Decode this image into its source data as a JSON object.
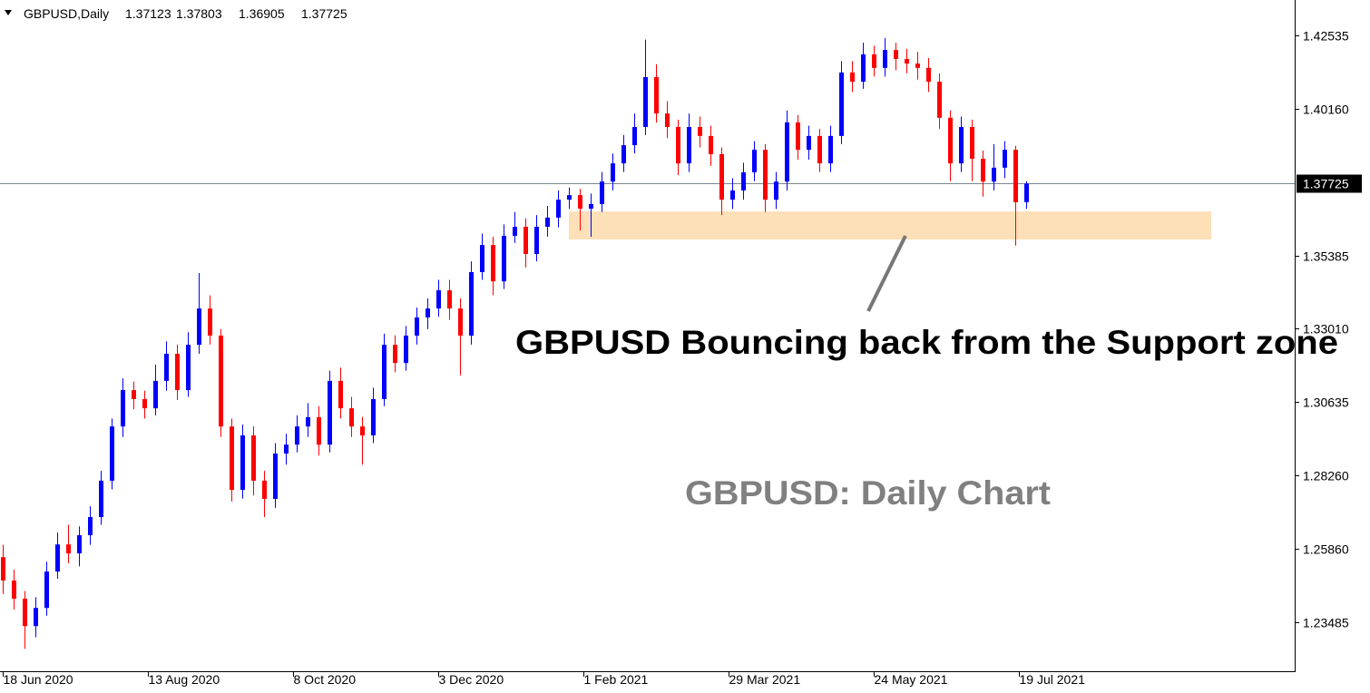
{
  "chart_data": {
    "type": "candlestick",
    "symbol": "GBPUSD,Daily",
    "title": "GBPUSD: Daily Chart",
    "annotation": "GBPUSD Bouncing back from the Support zone",
    "up_color": "#0000ff",
    "down_color": "#ff0000",
    "price_line_color": "#7a8796",
    "zone_color": "#fde0b8",
    "x": [
      0,
      3,
      6,
      9,
      12,
      15,
      18,
      21,
      24,
      27,
      30,
      33,
      36,
      39,
      42,
      45,
      48,
      51,
      54,
      57,
      60,
      63,
      66,
      69,
      72,
      75,
      78,
      81,
      84,
      87,
      90,
      93,
      96,
      99,
      102,
      105,
      108,
      111,
      114,
      117,
      120,
      123,
      126,
      129,
      132,
      135,
      138,
      141,
      144,
      147,
      150,
      153,
      156,
      159,
      162,
      165,
      168,
      171,
      174,
      177,
      180,
      183,
      186,
      189,
      192,
      195,
      198,
      201,
      204,
      207,
      210,
      213,
      216,
      219,
      222,
      225,
      228,
      231,
      234,
      237,
      240,
      243,
      246,
      249,
      252,
      255,
      258,
      261,
      264,
      267,
      270,
      273,
      276,
      279,
      282
    ],
    "open": [
      1.256,
      1.2484,
      1.2425,
      1.2336,
      1.2395,
      1.2513,
      1.2601,
      1.2572,
      1.2631,
      1.269,
      1.2808,
      1.2984,
      1.3102,
      1.3073,
      1.3043,
      1.3132,
      1.322,
      1.3102,
      1.3249,
      1.3367,
      1.3279,
      1.2984,
      1.2778,
      1.2955,
      1.2808,
      1.2749,
      1.2896,
      1.2925,
      1.2984,
      1.3014,
      1.2925,
      1.3132,
      1.3043,
      1.2984,
      1.2955,
      1.3073,
      1.3249,
      1.319,
      1.3279,
      1.3338,
      1.3367,
      1.3426,
      1.3367,
      1.3279,
      1.3485,
      1.3573,
      1.3455,
      1.3603,
      1.3632,
      1.3544,
      1.3632,
      1.3662,
      1.372,
      1.3735,
      1.3691,
      1.3706,
      1.3779,
      1.3838,
      1.3897,
      1.3956,
      1.4118,
      1.4,
      1.3956,
      1.3838,
      1.3956,
      1.3927,
      1.3868,
      1.372,
      1.375,
      1.3809,
      1.3882,
      1.372,
      1.3779,
      1.3971,
      1.3882,
      1.3927,
      1.3838,
      1.3927,
      1.4133,
      1.4103,
      1.4192,
      1.4148,
      1.4206,
      1.4177,
      1.4162,
      1.4148,
      1.4103,
      1.3986,
      1.3838,
      1.3956,
      1.3853,
      1.3779,
      1.3824,
      1.3882,
      1.37123
    ],
    "high": [
      1.26,
      1.252,
      1.245,
      1.243,
      1.2545,
      1.264,
      1.2665,
      1.266,
      1.2725,
      1.284,
      1.301,
      1.314,
      1.313,
      1.31,
      1.3185,
      1.326,
      1.325,
      1.329,
      1.3482,
      1.341,
      1.33,
      1.301,
      1.299,
      1.2985,
      1.284,
      1.293,
      1.296,
      1.302,
      1.306,
      1.305,
      1.3165,
      1.3175,
      1.308,
      1.3015,
      1.311,
      1.3285,
      1.328,
      1.331,
      1.337,
      1.34,
      1.346,
      1.346,
      1.34,
      1.352,
      1.361,
      1.36,
      1.364,
      1.368,
      1.366,
      1.367,
      1.37,
      1.375,
      1.376,
      1.3755,
      1.374,
      1.381,
      1.387,
      1.393,
      1.4,
      1.424,
      1.416,
      1.404,
      1.398,
      1.4,
      1.399,
      1.396,
      1.389,
      1.379,
      1.384,
      1.391,
      1.39,
      1.381,
      1.401,
      1.3995,
      1.396,
      1.395,
      1.396,
      1.417,
      1.417,
      1.423,
      1.422,
      1.4245,
      1.423,
      1.421,
      1.42,
      1.418,
      1.413,
      1.401,
      1.399,
      1.398,
      1.388,
      1.39,
      1.391,
      1.3895,
      1.37803
    ],
    "low": [
      1.244,
      1.239,
      1.2262,
      1.23,
      1.237,
      1.249,
      1.254,
      1.253,
      1.26,
      1.2665,
      1.278,
      1.295,
      1.304,
      1.301,
      1.302,
      1.31,
      1.307,
      1.308,
      1.322,
      1.325,
      1.295,
      1.274,
      1.275,
      1.276,
      1.269,
      1.272,
      1.286,
      1.29,
      1.295,
      1.289,
      1.29,
      1.301,
      1.295,
      1.286,
      1.293,
      1.305,
      1.316,
      1.3165,
      1.325,
      1.33,
      1.334,
      1.333,
      1.315,
      1.325,
      1.346,
      1.341,
      1.343,
      1.358,
      1.35,
      1.352,
      1.36,
      1.363,
      1.369,
      1.362,
      1.36,
      1.368,
      1.375,
      1.381,
      1.387,
      1.393,
      1.397,
      1.392,
      1.38,
      1.381,
      1.389,
      1.383,
      1.367,
      1.369,
      1.372,
      1.378,
      1.368,
      1.369,
      1.375,
      1.385,
      1.385,
      1.381,
      1.381,
      1.39,
      1.407,
      1.408,
      1.412,
      1.412,
      1.414,
      1.413,
      1.411,
      1.407,
      1.395,
      1.378,
      1.381,
      1.378,
      1.373,
      1.375,
      1.379,
      1.3571,
      1.36905
    ],
    "close": [
      1.2484,
      1.2425,
      1.2336,
      1.2395,
      1.2513,
      1.2601,
      1.2572,
      1.2631,
      1.269,
      1.2808,
      1.2984,
      1.3102,
      1.3073,
      1.3043,
      1.3132,
      1.322,
      1.3102,
      1.3249,
      1.3367,
      1.3279,
      1.2984,
      1.2778,
      1.2955,
      1.2808,
      1.2749,
      1.2896,
      1.2925,
      1.2984,
      1.3014,
      1.2925,
      1.3132,
      1.3043,
      1.2984,
      1.2955,
      1.3073,
      1.3249,
      1.319,
      1.3279,
      1.3338,
      1.3367,
      1.3426,
      1.3367,
      1.3279,
      1.3485,
      1.3573,
      1.3455,
      1.3603,
      1.3632,
      1.3544,
      1.3632,
      1.3662,
      1.372,
      1.3735,
      1.3691,
      1.3706,
      1.3779,
      1.3838,
      1.3897,
      1.3956,
      1.4118,
      1.4,
      1.3956,
      1.3838,
      1.3956,
      1.3927,
      1.3868,
      1.372,
      1.375,
      1.3809,
      1.3882,
      1.372,
      1.3779,
      1.3971,
      1.3882,
      1.3927,
      1.3838,
      1.3927,
      1.4133,
      1.4103,
      1.4192,
      1.4148,
      1.4206,
      1.4177,
      1.4162,
      1.4148,
      1.4103,
      1.3986,
      1.3838,
      1.3956,
      1.3853,
      1.3779,
      1.3824,
      1.3882,
      1.3712,
      1.37725
    ],
    "support_zone": {
      "x": [
        156,
        333
      ],
      "low": 1.3591,
      "high": 1.3682
    },
    "xlim": [
      -0.75,
      356
    ],
    "ylim": [
      1.21895,
      1.43683
    ],
    "xticks": [
      {
        "value": 0,
        "label": "18 Jun 2020"
      },
      {
        "value": 40,
        "label": "13 Aug 2020"
      },
      {
        "value": 80,
        "label": "8 Oct 2020"
      },
      {
        "value": 120,
        "label": "3 Dec 2020"
      },
      {
        "value": 160,
        "label": "1 Feb 2021"
      },
      {
        "value": 200,
        "label": "29 Mar 2021"
      },
      {
        "value": 240,
        "label": "24 May 2021"
      },
      {
        "value": 280,
        "label": "19 Jul 2021"
      }
    ],
    "yticks": [
      1.42535,
      {
        "value": 1.4016,
        "label": "1.40160"
      },
      1.35385,
      {
        "value": 1.3301,
        "label": "1.33010"
      },
      1.30635,
      {
        "value": 1.2826,
        "label": "1.28260"
      },
      {
        "value": 1.2586,
        "label": "1.25860"
      },
      1.23485
    ]
  }
}
